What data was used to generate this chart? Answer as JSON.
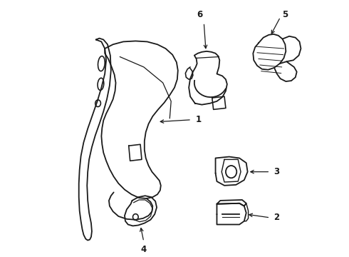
{
  "bg_color": "#ffffff",
  "line_color": "#1a1a1a",
  "line_width": 1.3,
  "label_fontsize": 8.5,
  "figsize": [
    4.9,
    3.6
  ],
  "dpi": 100
}
